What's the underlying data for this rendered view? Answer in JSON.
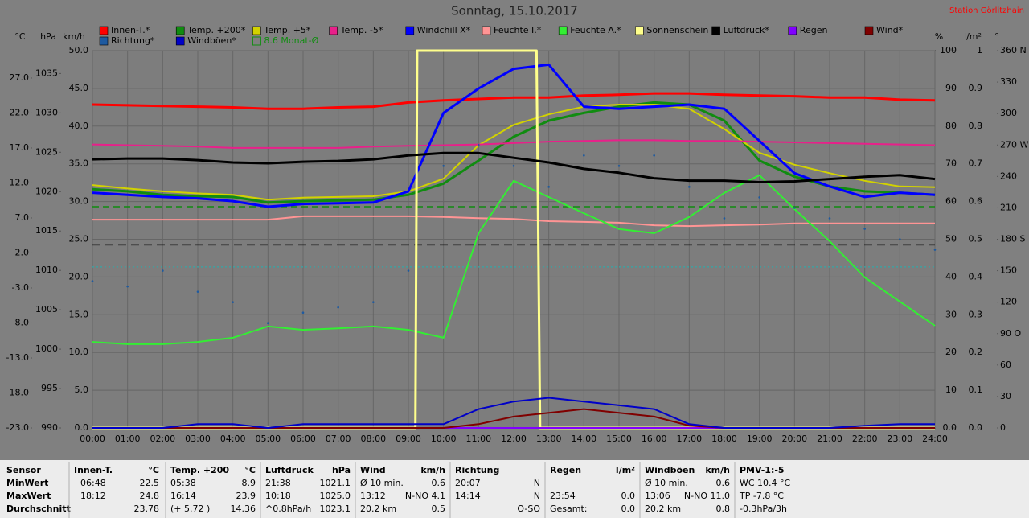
{
  "chart_data": {
    "type": "line",
    "title": "Sonntag, 15.10.2017",
    "station": "Station Görlitzhain",
    "xlim": [
      0,
      24
    ],
    "x": [
      0,
      1,
      2,
      3,
      4,
      5,
      6,
      7,
      8,
      9,
      10,
      11,
      12,
      13,
      14,
      15,
      16,
      17,
      18,
      19,
      20,
      21,
      22,
      23,
      24
    ],
    "xticks": [
      {
        "value": 0,
        "label": "00:00"
      },
      {
        "value": 1,
        "label": "01:00"
      },
      {
        "value": 2,
        "label": "02:00"
      },
      {
        "value": 3,
        "label": "03:00"
      },
      {
        "value": 4,
        "label": "04:00"
      },
      {
        "value": 5,
        "label": "05:00"
      },
      {
        "value": 6,
        "label": "06:00"
      },
      {
        "value": 7,
        "label": "07:00"
      },
      {
        "value": 8,
        "label": "08:00"
      },
      {
        "value": 9,
        "label": "09:00"
      },
      {
        "value": 10,
        "label": "10:00"
      },
      {
        "value": 11,
        "label": "11:00"
      },
      {
        "value": 12,
        "label": "12:00"
      },
      {
        "value": 13,
        "label": "13:00"
      },
      {
        "value": 14,
        "label": "14:00"
      },
      {
        "value": 15,
        "label": "15:00"
      },
      {
        "value": 16,
        "label": "16:00"
      },
      {
        "value": 17,
        "label": "17:00"
      },
      {
        "value": 18,
        "label": "18:00"
      },
      {
        "value": 19,
        "label": "19:00"
      },
      {
        "value": 20,
        "label": "20:00"
      },
      {
        "value": 21,
        "label": "21:00"
      },
      {
        "value": 22,
        "label": "22:00"
      },
      {
        "value": 23,
        "label": "23:00"
      },
      {
        "value": 24,
        "label": "24:00"
      }
    ],
    "grid": true,
    "axes": {
      "temp": {
        "unit": "°C",
        "lim": [
          -23,
          30.9
        ],
        "ticks": [
          {
            "value": -23,
            "label": "-23.0"
          },
          {
            "value": -18,
            "label": "-18.0"
          },
          {
            "value": -13,
            "label": "-13.0"
          },
          {
            "value": -8,
            "label": "-8.0"
          },
          {
            "value": -3,
            "label": "-3.0"
          },
          {
            "value": 2,
            "label": "2.0"
          },
          {
            "value": 7,
            "label": "7.0"
          },
          {
            "value": 12,
            "label": "12.0"
          },
          {
            "value": 17,
            "label": "17.0"
          },
          {
            "value": 22,
            "label": "22.0"
          },
          {
            "value": 27,
            "label": "27.0"
          }
        ]
      },
      "hpa": {
        "unit": "hPa",
        "lim": [
          990,
          1037.9
        ],
        "ticks": [
          990,
          995,
          1000,
          1005,
          1010,
          1015,
          1020,
          1025,
          1030,
          1035
        ]
      },
      "kmh": {
        "unit": "km/h",
        "lim": [
          0,
          50
        ],
        "ticks": [
          {
            "value": 0,
            "label": "0.0"
          },
          {
            "value": 5,
            "label": "5.0"
          },
          {
            "value": 10,
            "label": "10.0"
          },
          {
            "value": 15,
            "label": "15.0"
          },
          {
            "value": 20,
            "label": "20.0"
          },
          {
            "value": 25,
            "label": "25.0"
          },
          {
            "value": 30,
            "label": "30.0"
          },
          {
            "value": 35,
            "label": "35.0"
          },
          {
            "value": 40,
            "label": "40.0"
          },
          {
            "value": 45,
            "label": "45.0"
          },
          {
            "value": 50,
            "label": "50.0"
          }
        ]
      },
      "pct": {
        "unit": "%",
        "lim": [
          0,
          100
        ],
        "ticks": [
          {
            "value": 0,
            "label": "0.0"
          },
          10,
          20,
          30,
          40,
          50,
          60,
          70,
          80,
          90,
          100
        ]
      },
      "rain": {
        "unit": "l/m²",
        "lim": [
          0,
          1
        ],
        "ticks": [
          {
            "value": 0,
            "label": "0.0"
          },
          0.1,
          0.2,
          0.3,
          0.4,
          0.5,
          0.6,
          0.7,
          0.8,
          0.9,
          1
        ]
      },
      "dir": {
        "unit": "°",
        "lim": [
          0,
          360
        ],
        "ticks": [
          0,
          30,
          60,
          {
            "value": 90,
            "label": "90 O"
          },
          120,
          150,
          {
            "value": 180,
            "label": "180 S"
          },
          210,
          240,
          {
            "value": 270,
            "label": "270 W"
          },
          300,
          330,
          {
            "value": 360,
            "label": "360 N"
          }
        ]
      }
    },
    "series": [
      {
        "name": "Innen-T.*",
        "color": "#ff0000",
        "axis": "temp",
        "width": 3,
        "values": [
          23.2,
          23.1,
          23.0,
          22.9,
          22.8,
          22.6,
          22.6,
          22.8,
          22.9,
          23.5,
          23.8,
          24.0,
          24.2,
          24.2,
          24.5,
          24.6,
          24.8,
          24.8,
          24.6,
          24.5,
          24.4,
          24.2,
          24.2,
          23.9,
          23.8
        ]
      },
      {
        "name": "Temp. +200*",
        "color": "#108c10",
        "axis": "temp",
        "width": 3,
        "values": [
          11.1,
          10.8,
          10.3,
          10.1,
          10.0,
          9.2,
          9.4,
          9.5,
          9.6,
          10.3,
          11.9,
          15.2,
          18.6,
          20.9,
          22.0,
          22.9,
          23.5,
          23.2,
          20.9,
          15.2,
          12.9,
          11.5,
          10.8,
          10.6,
          10.3
        ]
      },
      {
        "name": "Temp. +5*",
        "color": "#d2d200",
        "axis": "temp",
        "width": 2,
        "values": [
          11.7,
          11.2,
          10.8,
          10.5,
          10.3,
          9.6,
          9.9,
          10.0,
          10.1,
          10.8,
          12.6,
          17.4,
          20.3,
          21.8,
          22.9,
          23.2,
          23.2,
          22.6,
          19.7,
          16.3,
          14.6,
          13.4,
          12.3,
          11.5,
          11.4
        ]
      },
      {
        "name": "Temp. -5*",
        "color": "#e8208a",
        "axis": "temp",
        "width": 2,
        "values": [
          17.5,
          17.4,
          17.3,
          17.2,
          17.0,
          17.0,
          17.0,
          17.0,
          17.2,
          17.3,
          17.4,
          17.5,
          17.7,
          17.9,
          18.0,
          18.1,
          18.1,
          18.0,
          18.0,
          17.9,
          17.8,
          17.7,
          17.6,
          17.5,
          17.4
        ]
      },
      {
        "name": "Windchill X*",
        "color": "#0000ff",
        "axis": "temp",
        "width": 3,
        "values": [
          10.6,
          10.3,
          10.0,
          9.8,
          9.4,
          8.6,
          9.0,
          9.1,
          9.2,
          10.8,
          22.0,
          25.5,
          28.3,
          28.9,
          22.9,
          22.6,
          22.9,
          23.2,
          22.6,
          18.0,
          13.4,
          11.5,
          10.0,
          10.6,
          10.3
        ]
      },
      {
        "name": "Feuchte I.*",
        "color": "#ff9494",
        "axis": "pct",
        "width": 2,
        "values": [
          55.2,
          55.2,
          55.2,
          55.2,
          55.2,
          55.2,
          56.1,
          56.1,
          56.1,
          56.1,
          55.9,
          55.6,
          55.4,
          54.8,
          54.6,
          54.4,
          53.7,
          53.5,
          53.7,
          53.9,
          54.2,
          54.2,
          54.2,
          54.2,
          54.2
        ]
      },
      {
        "name": "Feuchte A.*",
        "color": "#33ee33",
        "axis": "pct",
        "width": 2,
        "values": [
          22.8,
          22.2,
          22.2,
          22.8,
          23.9,
          26.9,
          26.0,
          26.4,
          26.9,
          26.0,
          23.9,
          51.6,
          65.5,
          61.2,
          56.9,
          52.7,
          51.6,
          55.9,
          62.3,
          67.0,
          58.0,
          49.5,
          39.9,
          33.5,
          27.1
        ]
      },
      {
        "name": "Sonnenschein",
        "color": "#ffff8c",
        "axis": "pct",
        "width": 3,
        "x": [
          0,
          9.2,
          9.25,
          12.65,
          12.75,
          24
        ],
        "values": [
          0,
          0,
          100,
          100,
          0,
          0
        ]
      },
      {
        "name": "Luftdruck*",
        "color": "#000000",
        "axis": "hpa",
        "width": 3,
        "values": [
          1024.1,
          1024.2,
          1024.2,
          1024.0,
          1023.7,
          1023.6,
          1023.8,
          1023.9,
          1024.1,
          1024.6,
          1024.9,
          1024.9,
          1024.3,
          1023.7,
          1022.9,
          1022.4,
          1021.7,
          1021.4,
          1021.4,
          1021.2,
          1021.3,
          1021.6,
          1021.9,
          1022.1,
          1021.6
        ]
      },
      {
        "name": "Regen",
        "color": "#8000ff",
        "axis": "rain",
        "width": 2,
        "values": [
          0,
          0,
          0,
          0,
          0,
          0,
          0,
          0,
          0,
          0,
          0,
          0,
          0,
          0,
          0,
          0,
          0,
          0,
          0,
          0,
          0,
          0,
          0,
          0,
          0
        ]
      },
      {
        "name": "Wind*",
        "color": "#800000",
        "axis": "kmh",
        "width": 2,
        "values": [
          0,
          0,
          0,
          0,
          0,
          0,
          0,
          0,
          0,
          0,
          0,
          0.5,
          1.5,
          2.0,
          2.5,
          2.0,
          1.5,
          0.3,
          0,
          0,
          0,
          0,
          0,
          0,
          0
        ]
      },
      {
        "name": "Richtung*",
        "color": "#1e5aa0",
        "axis": "dir",
        "mark": "dots",
        "values": [
          140,
          135,
          150,
          130,
          120,
          100,
          110,
          115,
          120,
          150,
          250,
          270,
          250,
          230,
          260,
          250,
          260,
          230,
          200,
          220,
          210,
          200,
          190,
          180,
          170
        ]
      },
      {
        "name": "Windböen*",
        "color": "#0000c8",
        "axis": "kmh",
        "width": 2,
        "values": [
          0,
          0,
          0,
          0.5,
          0.5,
          0,
          0.5,
          0.5,
          0.5,
          0.5,
          0.5,
          2.5,
          3.5,
          4.0,
          3.5,
          3.0,
          2.5,
          0.5,
          0,
          0,
          0,
          0,
          0.3,
          0.5,
          0.5
        ]
      }
    ],
    "reference_lines": [
      {
        "label": "8.6 Monat-Ø",
        "value": 8.6,
        "axis": "temp",
        "color": "#108c10",
        "dash": "8 5"
      },
      {
        "value": 1013.25,
        "axis": "hpa",
        "color": "#000000",
        "dash": "10 6"
      },
      {
        "value": 0,
        "axis": "temp",
        "color": "#40a0a0",
        "dash": "2 3"
      }
    ]
  },
  "table": {
    "header": "Sensor",
    "row_labels": [
      "MinWert",
      "MaxWert",
      "Durchschnitt"
    ],
    "groups": [
      {
        "title": "Innen-T.",
        "unit": "°C",
        "rows": [
          {
            "l": "06:48",
            "r": "22.5"
          },
          {
            "l": "18:12",
            "r": "24.8"
          },
          {
            "r": "23.78"
          }
        ]
      },
      {
        "title": "Temp. +200",
        "unit": "°C",
        "rows": [
          {
            "l": "05:38",
            "r": "8.9"
          },
          {
            "l": "16:14",
            "r": "23.9"
          },
          {
            "l": "(+ 5.72 )",
            "r": "14.36"
          }
        ]
      },
      {
        "title": "Luftdruck",
        "unit": "hPa",
        "rows": [
          {
            "l": "21:38",
            "r": "1021.1"
          },
          {
            "l": "10:18",
            "r": "1025.0"
          },
          {
            "l": "^0.8hPa/h",
            "r": "1023.1"
          }
        ]
      },
      {
        "title": "Wind",
        "unit": "km/h",
        "rows": [
          {
            "l": "Ø 10 min.",
            "r": "0.6"
          },
          {
            "l": "13:12",
            "r": "N-NO 4.1"
          },
          {
            "l": "20.2 km",
            "r": "0.5"
          }
        ]
      },
      {
        "title": "Richtung",
        "rows": [
          {
            "l": "20:07",
            "r": "N"
          },
          {
            "l": "14:14",
            "r": "N"
          },
          {
            "r": "O-SO"
          }
        ]
      },
      {
        "title": "Regen",
        "unit": "l/m²",
        "rows": [
          {},
          {
            "l": "23:54",
            "r": "0.0"
          },
          {
            "l": "Gesamt:",
            "r": "0.0"
          }
        ]
      },
      {
        "title": "Windböen",
        "unit": "km/h",
        "rows": [
          {
            "l": "Ø 10 min.",
            "r": "0.6"
          },
          {
            "l": "13:06",
            "r": "N-NO 11.0"
          },
          {
            "l": "20.2 km",
            "r": "0.8"
          }
        ]
      },
      {
        "title": "PMV-1:-5",
        "rows": [
          {
            "l": "WC 10.4 °C"
          },
          {
            "l": "TP -7.8 °C"
          },
          {
            "l": "-0.3hPa/3h"
          }
        ]
      }
    ]
  }
}
